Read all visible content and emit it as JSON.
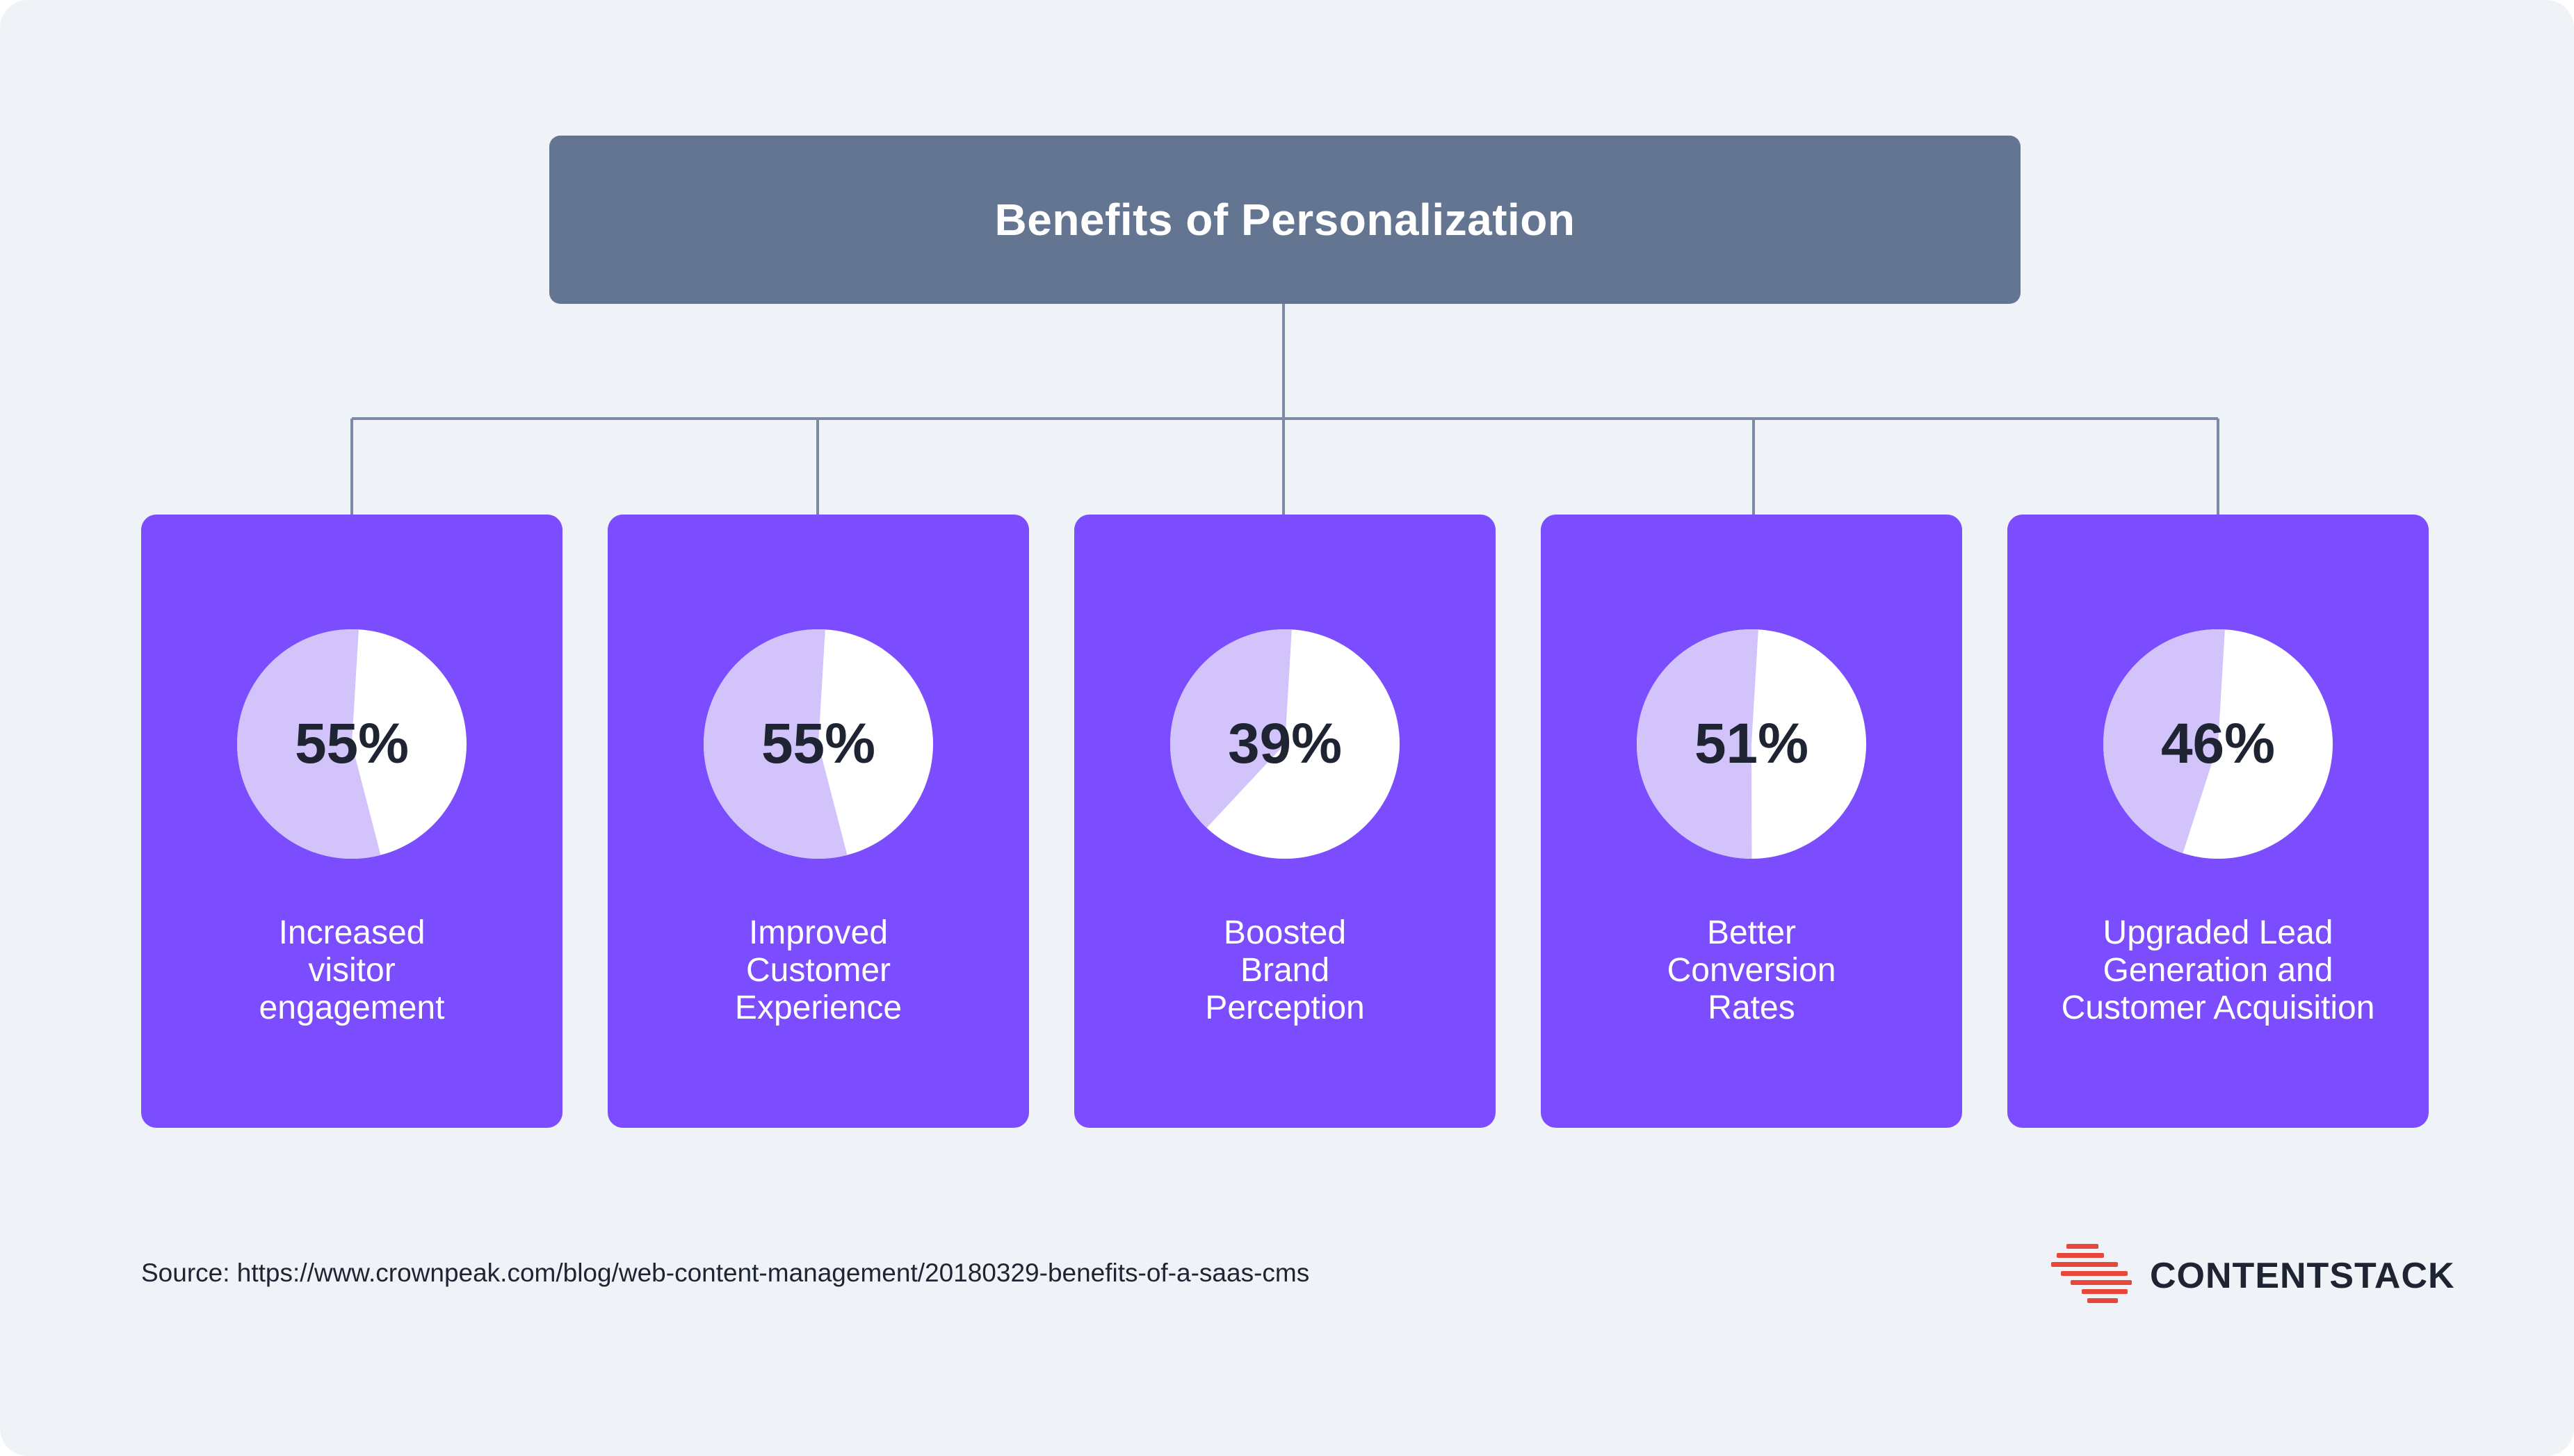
{
  "title": "Benefits of Personalization",
  "colors": {
    "background": "#eff2f7",
    "title_box": "#637590",
    "card": "#7c4dff",
    "pie_filled": "#d2c3fa",
    "pie_remaining": "#ffffff",
    "connector": "#7c8aa3",
    "logo_accent": "#e8483b"
  },
  "cards": [
    {
      "value": "55%",
      "percent": 55,
      "label": "Increased\nvisitor\nengagement"
    },
    {
      "value": "55%",
      "percent": 55,
      "label": "Improved\nCustomer\nExperience"
    },
    {
      "value": "39%",
      "percent": 39,
      "label": "Boosted\nBrand\nPerception"
    },
    {
      "value": "51%",
      "percent": 51,
      "label": "Better\nConversion\nRates"
    },
    {
      "value": "46%",
      "percent": 46,
      "label": "Upgraded Lead\nGeneration and\nCustomer Acquisition"
    }
  ],
  "source": "Source: https://www.crownpeak.com/blog/web-content-management/20180329-benefits-of-a-saas-cms",
  "logo": {
    "text": "CONTENTSTACK",
    "icon": "contentstack-logo-icon"
  }
}
